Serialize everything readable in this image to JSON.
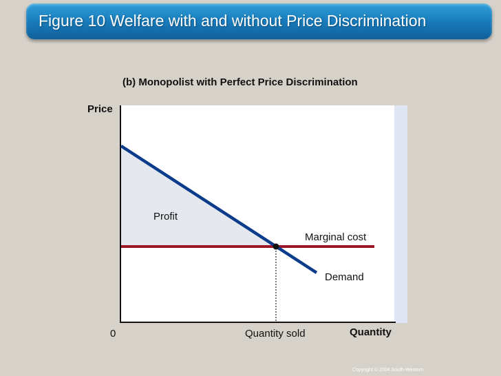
{
  "slide": {
    "title": "Figure 10 Welfare with and without Price Discrimination",
    "copyright": "Copyright © 2004  South-Western"
  },
  "diagram": {
    "subtitle": "(b) Monopolist with Perfect Price Discrimination",
    "y_axis_label": "Price",
    "x_axis_label": "Quantity",
    "origin_label": "0",
    "quantity_marker_label": "Quantity sold",
    "region_label": "Profit",
    "curves": {
      "marginal_cost": "Marginal cost",
      "demand": "Demand"
    },
    "colors": {
      "demand": "#0b3c8c",
      "marginal_cost": "#9b1626",
      "profit_fill": "#e6e8ef",
      "title_bar": "#1a7fbf"
    }
  }
}
